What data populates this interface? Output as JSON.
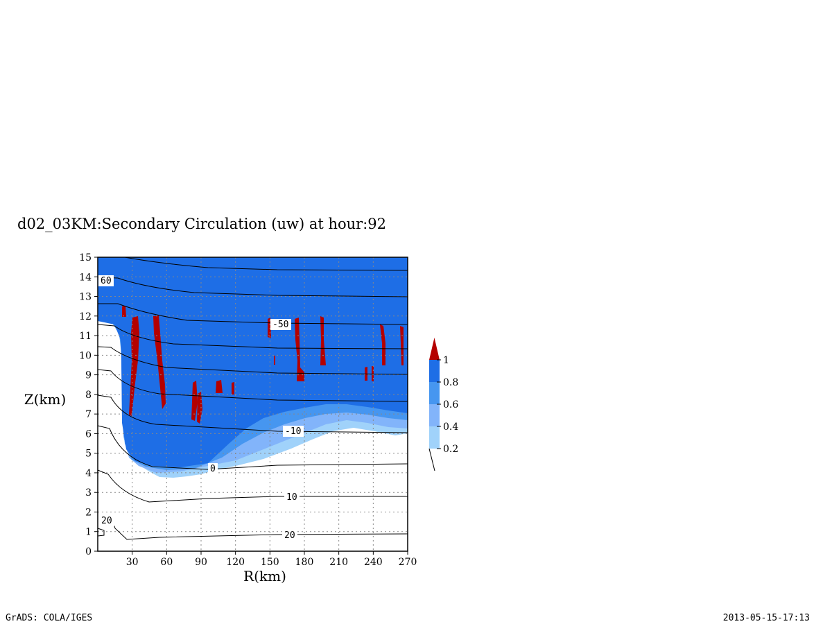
{
  "title": "d02_03KM:Secondary Circulation (uw) at hour:92",
  "footer": {
    "left": "GrADS: COLA/IGES",
    "right": "2013-05-15-17:13"
  },
  "chart_data": {
    "type": "contour",
    "xlabel": "R(km)",
    "ylabel": "Z(km)",
    "xlim": [
      0,
      270
    ],
    "ylim": [
      0,
      15
    ],
    "x_ticks": [
      30,
      60,
      90,
      120,
      150,
      180,
      210,
      240,
      270
    ],
    "y_ticks": [
      0,
      1,
      2,
      3,
      4,
      5,
      6,
      7,
      8,
      9,
      10,
      11,
      12,
      13,
      14,
      15
    ],
    "grid": true,
    "colorbar": {
      "levels": [
        "0.2",
        "0.4",
        "0.6",
        "0.8",
        "1"
      ],
      "colors": [
        "#a0d2fa",
        "#82b4fa",
        "#4696f0",
        "#1e6ee6",
        "#b40000"
      ],
      "extend": "max"
    },
    "contour_labels": [
      "60",
      "-50",
      "-10",
      "0",
      "10",
      "20",
      "20"
    ]
  }
}
